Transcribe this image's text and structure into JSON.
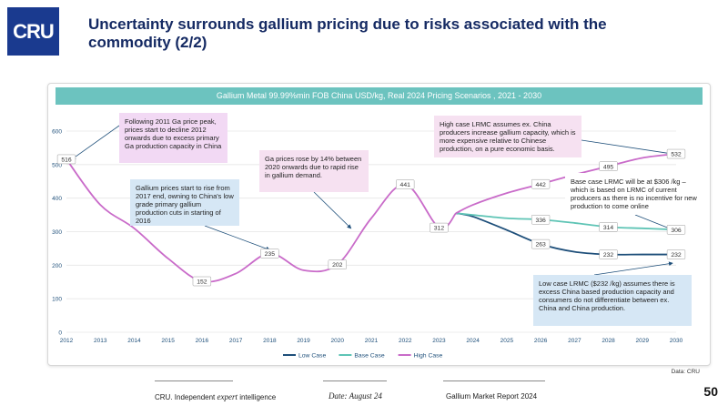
{
  "logo_text": "CRU",
  "title": "Uncertainty surrounds gallium pricing due to risks associated with the commodity (2/2)",
  "chart_data": {
    "type": "line",
    "title": "Gallium Metal 99.99%min FOB China USD/kg, Real 2024 Pricing Scenarios , 2021 - 2030",
    "xlabel": "",
    "ylabel": "",
    "x": [
      2012,
      2013,
      2014,
      2015,
      2016,
      2017,
      2018,
      2019,
      2020,
      2021,
      2022,
      2023,
      2024,
      2025,
      2026,
      2027,
      2028,
      2029,
      2030
    ],
    "ylim": [
      0,
      600
    ],
    "yticks": [
      0,
      100,
      200,
      300,
      400,
      500,
      600
    ],
    "grid": true,
    "legend_position": "bottom",
    "historical": {
      "color": "#c96bc9",
      "points": [
        [
          2012,
          516
        ],
        [
          2013,
          380
        ],
        [
          2014,
          310
        ],
        [
          2015,
          220
        ],
        [
          2016,
          152
        ],
        [
          2017,
          175
        ],
        [
          2018,
          235
        ],
        [
          2019,
          185
        ],
        [
          2020,
          202
        ],
        [
          2021,
          340
        ],
        [
          2022,
          441
        ],
        [
          2023,
          312
        ],
        [
          2023.5,
          355
        ]
      ]
    },
    "series": [
      {
        "name": "Low Case",
        "color": "#1e4f7a",
        "points": [
          [
            2023.5,
            355
          ],
          [
            2024,
            345
          ],
          [
            2025,
            305
          ],
          [
            2026,
            263
          ],
          [
            2027,
            240
          ],
          [
            2028,
            232
          ],
          [
            2029,
            232
          ],
          [
            2030,
            232
          ]
        ]
      },
      {
        "name": "Base Case",
        "color": "#5ec4b5",
        "points": [
          [
            2023.5,
            355
          ],
          [
            2024,
            350
          ],
          [
            2025,
            340
          ],
          [
            2026,
            336
          ],
          [
            2027,
            326
          ],
          [
            2028,
            314
          ],
          [
            2029,
            310
          ],
          [
            2030,
            306
          ]
        ]
      },
      {
        "name": "High Case",
        "color": "#c96bc9",
        "points": [
          [
            2023.5,
            355
          ],
          [
            2024,
            380
          ],
          [
            2025,
            415
          ],
          [
            2026,
            442
          ],
          [
            2027,
            470
          ],
          [
            2028,
            495
          ],
          [
            2029,
            520
          ],
          [
            2030,
            532
          ]
        ]
      }
    ],
    "data_labels": [
      {
        "x": 2012,
        "y": 516,
        "text": "516"
      },
      {
        "x": 2016,
        "y": 152,
        "text": "152"
      },
      {
        "x": 2018,
        "y": 235,
        "text": "235"
      },
      {
        "x": 2020,
        "y": 202,
        "text": "202"
      },
      {
        "x": 2022,
        "y": 441,
        "text": "441"
      },
      {
        "x": 2023,
        "y": 312,
        "text": "312"
      },
      {
        "x": 2026,
        "y": 442,
        "text": "442"
      },
      {
        "x": 2026,
        "y": 336,
        "text": "336"
      },
      {
        "x": 2026,
        "y": 263,
        "text": "263"
      },
      {
        "x": 2028,
        "y": 495,
        "text": "495"
      },
      {
        "x": 2028,
        "y": 314,
        "text": "314"
      },
      {
        "x": 2028,
        "y": 232,
        "text": "232"
      },
      {
        "x": 2030,
        "y": 532,
        "text": "532"
      },
      {
        "x": 2030,
        "y": 306,
        "text": "306"
      },
      {
        "x": 2030,
        "y": 232,
        "text": "232"
      }
    ],
    "annotations": [
      {
        "text": "Following 2011 Ga price peak, prices start to decline 2012 onwards due to excess primary Ga production capacity in China",
        "color": "pink",
        "target": [
          2012,
          516
        ]
      },
      {
        "text": "Gallium prices start to rise from 2017 end, owning to China's low grade primary gallium production cuts in starting of 2016",
        "color": "blue",
        "target": [
          2018,
          235
        ]
      },
      {
        "text": "Ga prices rose by 14% between 2020 onwards due to rapid rise in gallium demand.",
        "color": "lightpink",
        "target": [
          2020.4,
          310
        ]
      },
      {
        "text": "High case LRMC assumes ex. China producers increase gallium capacity, which is more expensive relative to Chinese production, on a pure economic basis.",
        "color": "lightpink",
        "target": [
          2030,
          532
        ]
      },
      {
        "text": "Base case LRMC will be at $306 /kg – which is based on LRMC of current producers as there is no incentive for new production to come online",
        "color": "white",
        "target": [
          2030,
          306
        ]
      },
      {
        "text": "Low case LRMC ($232 /kg) assumes there is excess China based production capacity and consumers do not differentiate between ex. China and China production.",
        "color": "blue",
        "target": [
          2030,
          206
        ]
      }
    ]
  },
  "source": "Data: CRU",
  "footer": {
    "left_prefix": "CRU. Independent ",
    "left_emphasis": "expert",
    "left_suffix": " intelligence",
    "date": "Date: August 24",
    "report": "Gallium Market Report 2024"
  },
  "page_number": "50"
}
